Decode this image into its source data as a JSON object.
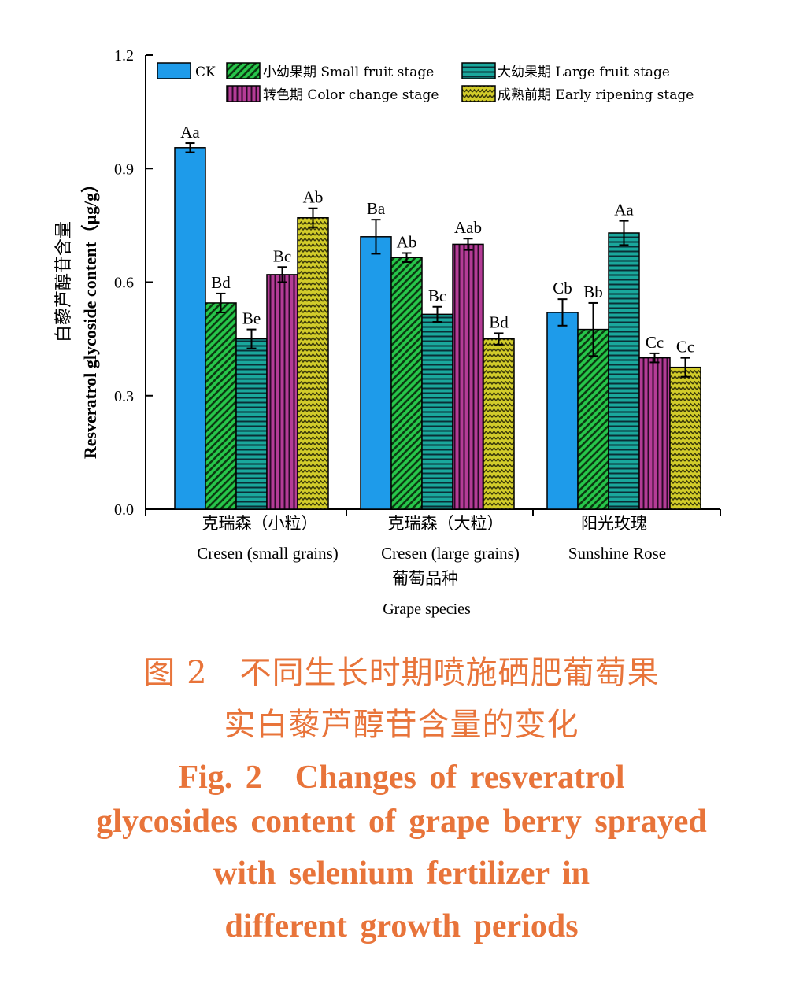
{
  "chart_data": {
    "type": "bar",
    "ylabel_cn": "白藜芦醇苷含量",
    "ylabel_en": "Resveratrol glycoside content（μg/g）",
    "xlabel_cn": "葡萄品种",
    "xlabel_en": "Grape species",
    "ylim": [
      0,
      1.2
    ],
    "yticks": [
      "0.0",
      "0.3",
      "0.6",
      "0.9",
      "1.2"
    ],
    "ytick_values": [
      0,
      0.3,
      0.6,
      0.9,
      1.2
    ],
    "categories": [
      {
        "cn": "克瑞森（小粒）",
        "en": "Cresen (small grains)"
      },
      {
        "cn": "克瑞森（大粒）",
        "en": "Cresen (large grains)"
      },
      {
        "cn": "阳光玫瑰",
        "en": "Sunshine Rose"
      }
    ],
    "legend_position": "top",
    "series": [
      {
        "name": "CK",
        "color": "#1e9bea",
        "pattern": "solid",
        "values": [
          0.955,
          0.72,
          0.52
        ],
        "errors": [
          0.012,
          0.045,
          0.035
        ],
        "labels": [
          "Aa",
          "Ba",
          "Cb"
        ]
      },
      {
        "name": "小幼果期 Small fruit stage",
        "color": "#27c64a",
        "pattern": "diagonal",
        "values": [
          0.545,
          0.665,
          0.475
        ],
        "errors": [
          0.025,
          0.012,
          0.07
        ],
        "labels": [
          "Bd",
          "Ab",
          "Bb"
        ]
      },
      {
        "name": "大幼果期 Large fruit stage",
        "color": "#1aa79c",
        "pattern": "horizontal",
        "values": [
          0.45,
          0.515,
          0.73
        ],
        "errors": [
          0.025,
          0.02,
          0.032
        ],
        "labels": [
          "Be",
          "Bc",
          "Aa"
        ]
      },
      {
        "name": "转色期 Color change stage",
        "color": "#b43c96",
        "pattern": "vertical",
        "values": [
          0.62,
          0.7,
          0.4
        ],
        "errors": [
          0.02,
          0.015,
          0.012
        ],
        "labels": [
          "Bc",
          "Aab",
          "Cc"
        ]
      },
      {
        "name": "成熟前期 Early ripening stage",
        "color": "#d2cc2a",
        "pattern": "wave",
        "values": [
          0.77,
          0.45,
          0.375
        ],
        "errors": [
          0.025,
          0.015,
          0.025
        ],
        "labels": [
          "Ab",
          "Bd",
          "Cc"
        ]
      }
    ]
  },
  "caption": {
    "cn_line1": "图 2　不同生长时期喷施硒肥葡萄果",
    "cn_line2": "实白藜芦醇苷含量的变化",
    "en_line1": "Fig. 2　Changes of resveratrol",
    "en_line2": "glycosides content of grape berry sprayed",
    "en_line3": "with selenium fertilizer in",
    "en_line4": "different growth periods"
  }
}
